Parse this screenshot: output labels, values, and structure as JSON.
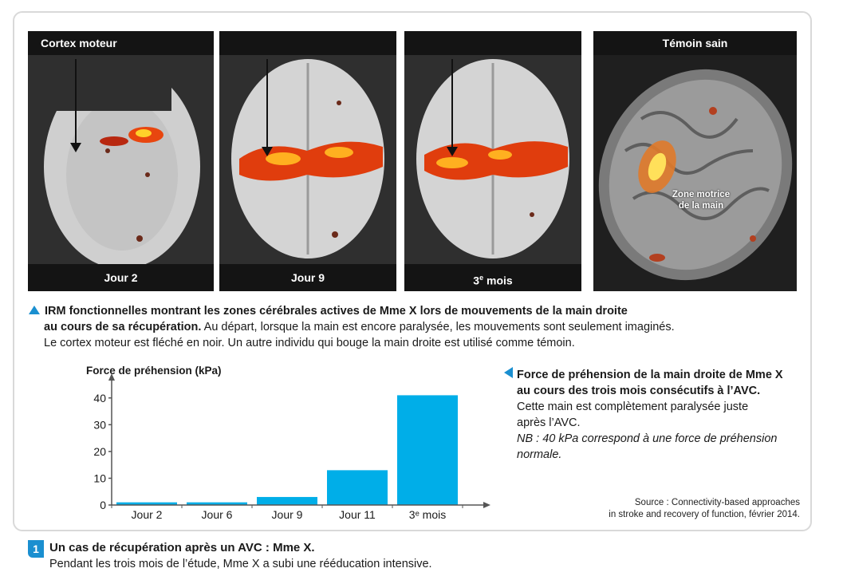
{
  "panels": [
    {
      "title": "Cortex moteur",
      "label": "Jour 2"
    },
    {
      "title": "",
      "label": "Jour 9"
    },
    {
      "title": "",
      "label_main": "3",
      "label_sup": "e",
      "label_rest": " mois"
    },
    {
      "title": "Témoin sain",
      "label": "",
      "annotation_line1": "Zone motrice",
      "annotation_line2": "de la main"
    }
  ],
  "caption_mri": {
    "bold_line1": "IRM fonctionnelles montrant les zones cérébrales actives de Mme X lors de mouvements de la main droite",
    "bold_line2": "au cours de sa récupération.",
    "text_line2": " Au départ, lorsque la main est encore paralysée, les mouvements sont seulement imaginés.",
    "text_line3": "Le cortex moteur est fléché en noir. Un autre individu qui bouge la main droite est utilisé comme témoin."
  },
  "caption_chart": {
    "bold_line1": "Force de préhension de la main droite de Mme X",
    "bold_line2": "au cours des trois mois consécutifs à l’AVC.",
    "text_line3": "Cette main est complètement paralysée juste",
    "text_line4": "après l’AVC.",
    "italic_line5": "NB : 40 kPa correspond à une force de préhension",
    "italic_line6": "normale."
  },
  "source": {
    "line1": "Source : Connectivity-based approaches",
    "line2": "in stroke and recovery of function, février 2014."
  },
  "figure": {
    "number": "1",
    "title": "Un cas de récupération après un AVC : Mme X.",
    "text": "Pendant les trois mois de l’étude, Mme X a subi une rééducation intensive."
  },
  "colors": {
    "bar": "#00aee8",
    "accent": "#1a8fd0"
  },
  "chart_data": {
    "type": "bar",
    "ylabel": "Force de préhension (kPa)",
    "categories": [
      "Jour 2",
      "Jour 6",
      "Jour 9",
      "Jour 11",
      "3ᵉ mois"
    ],
    "values": [
      1,
      1,
      3,
      13,
      41
    ],
    "yticks": [
      0,
      10,
      20,
      30,
      40
    ],
    "ylim": [
      0,
      45
    ],
    "grid": false
  }
}
